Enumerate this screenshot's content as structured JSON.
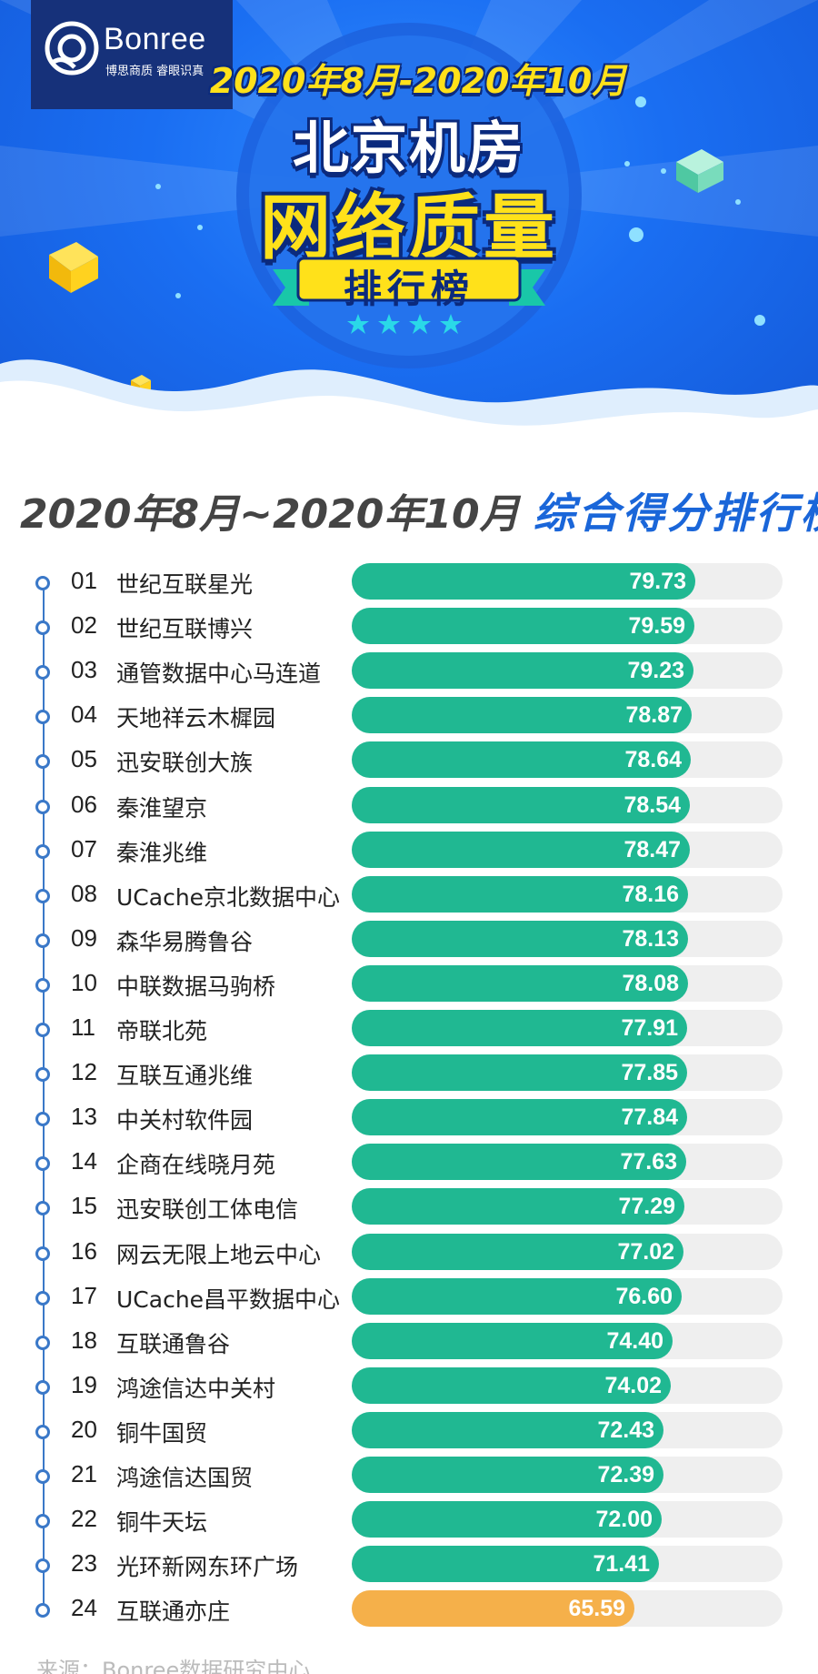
{
  "brand": {
    "name": "Bonree",
    "slogan": "博思商质 睿眼识真"
  },
  "banner": {
    "date_range": "2020年8月-2020年10月",
    "title_line1": "北京机房",
    "title_line2": "网络质量",
    "title_line3": "排行榜"
  },
  "section": {
    "date_range": "2020年8月~2020年10月",
    "label": "综合得分排行榜"
  },
  "colors": {
    "accent_blue": "#1a66d9",
    "bar_green": "#20b892",
    "bar_orange": "#f5b04a",
    "track_gray": "#efefef",
    "title_yellow": "#ffe11a"
  },
  "chart_data": {
    "type": "bar",
    "orientation": "horizontal",
    "xlim": [
      0,
      100
    ],
    "grid": false,
    "ranks": [
      "01",
      "02",
      "03",
      "04",
      "05",
      "06",
      "07",
      "08",
      "09",
      "10",
      "11",
      "12",
      "13",
      "14",
      "15",
      "16",
      "17",
      "18",
      "19",
      "20",
      "21",
      "22",
      "23",
      "24"
    ],
    "categories": [
      "世纪互联星光",
      "世纪互联博兴",
      "通管数据中心马连道",
      "天地祥云木樨园",
      "迅安联创大族",
      "秦淮望京",
      "秦淮兆维",
      "UCache京北数据中心",
      "森华易腾鲁谷",
      "中联数据马驹桥",
      "帝联北苑",
      "互联互通兆维",
      "中关村软件园",
      "企商在线晓月苑",
      "迅安联创工体电信",
      "网云无限上地云中心",
      "UCache昌平数据中心",
      "互联通鲁谷",
      "鸿途信达中关村",
      "铜牛国贸",
      "鸿途信达国贸",
      "铜牛天坛",
      "光环新网东环广场",
      "互联通亦庄"
    ],
    "values": [
      79.73,
      79.59,
      79.23,
      78.87,
      78.64,
      78.54,
      78.47,
      78.16,
      78.13,
      78.08,
      77.91,
      77.85,
      77.84,
      77.63,
      77.29,
      77.02,
      76.6,
      74.4,
      74.02,
      72.43,
      72.39,
      72.0,
      71.41,
      65.59
    ],
    "value_labels": [
      "79.73",
      "79.59",
      "79.23",
      "78.87",
      "78.64",
      "78.54",
      "78.47",
      "78.16",
      "78.13",
      "78.08",
      "77.91",
      "77.85",
      "77.84",
      "77.63",
      "77.29",
      "77.02",
      "76.60",
      "74.40",
      "74.02",
      "72.43",
      "72.39",
      "72.00",
      "71.41",
      "65.59"
    ],
    "highlight_last": true
  },
  "footer": {
    "source": "来源：Bonree数据研究中心"
  }
}
